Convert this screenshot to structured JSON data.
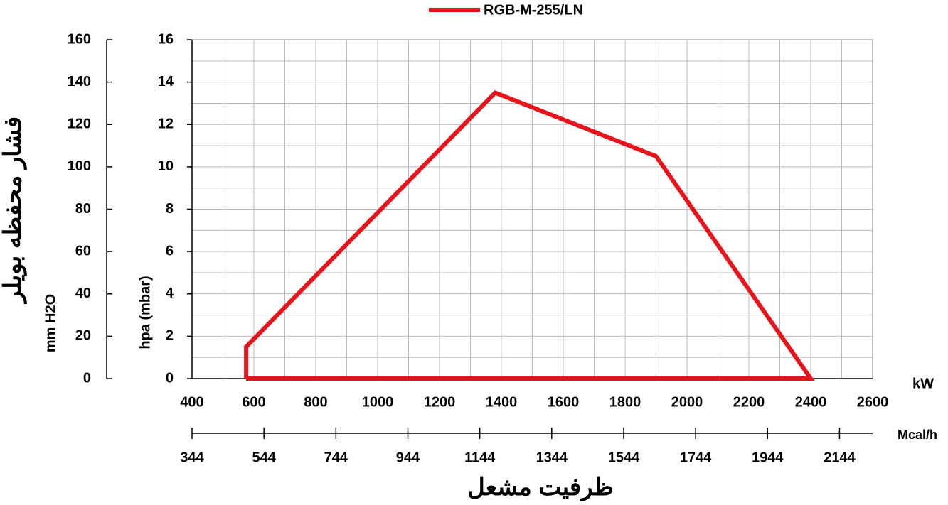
{
  "chart_data": {
    "type": "line",
    "x_label": "kW",
    "x2_label": "Mcal/h",
    "x_title": "ظرفیت مشعل",
    "y_label": "hpa (mbar)",
    "y2_label": "mm H2O",
    "y2_title": "فشار محفظه بویلر",
    "xlim": [
      400,
      2600
    ],
    "xticks": [
      400,
      600,
      800,
      1000,
      1200,
      1400,
      1600,
      1800,
      2000,
      2200,
      2400,
      2600
    ],
    "x2lim": [
      344,
      2236
    ],
    "x2ticks": [
      344,
      544,
      744,
      944,
      1144,
      1344,
      1544,
      1744,
      1944,
      2144
    ],
    "ylim": [
      0,
      16
    ],
    "yticks": [
      0,
      2,
      4,
      6,
      8,
      10,
      12,
      14,
      16
    ],
    "y2lim": [
      0,
      160
    ],
    "y2ticks": [
      0,
      20,
      40,
      60,
      80,
      100,
      120,
      140,
      160
    ],
    "grid": true,
    "legend": "top",
    "series": [
      {
        "name": "RGB-M-255/LN",
        "color": "#e8141c",
        "x": [
          575,
          575,
          1380,
          1900,
          2400,
          575
        ],
        "values": [
          0,
          1.5,
          13.5,
          10.5,
          0,
          0
        ]
      }
    ]
  }
}
